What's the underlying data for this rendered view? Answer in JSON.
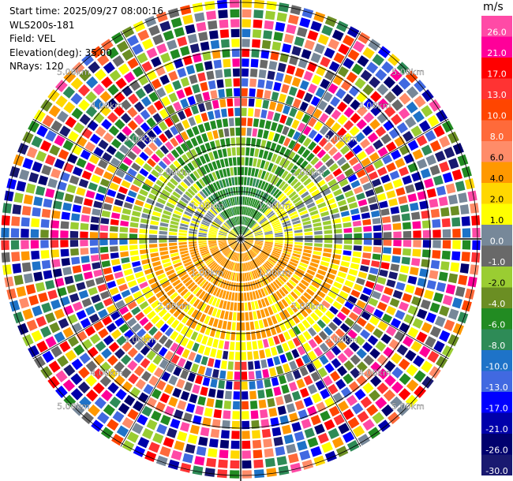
{
  "info": {
    "start_time": "Start time: 2025/09/27 08:00:16",
    "instrument": "WLS200s-181",
    "field": "Field: VEL",
    "elevation": "Elevation(deg): 35.00",
    "nrays": "NRays: 120"
  },
  "range_rings": {
    "labels": [
      "1.00km",
      "2.00km",
      "3.00km",
      "4.00km",
      "5.00km"
    ]
  },
  "colorbar": {
    "unit": "m/s",
    "ticks": [
      "26.0",
      "21.0",
      "17.0",
      "13.0",
      "10.0",
      "8.0",
      "6.0",
      "4.0",
      "2.0",
      "1.0",
      "0.0",
      "-1.0",
      "-2.0",
      "-4.0",
      "-6.0",
      "-8.0",
      "-10.0",
      "-13.0",
      "-17.0",
      "-21.0",
      "-26.0",
      "-30.0"
    ],
    "colors": [
      "#ff4aa6",
      "#ff0099",
      "#ff0000",
      "#ff3333",
      "#ff4500",
      "#ff6a3a",
      "#ff8c69",
      "#ff9800",
      "#ffd700",
      "#ffff00",
      "#778899",
      "#696969",
      "#9acd32",
      "#6b8e23",
      "#228b22",
      "#2e8b57",
      "#1e73c8",
      "#4169e1",
      "#0000ff",
      "#0000aa",
      "#00006e",
      "#191970"
    ]
  }
}
